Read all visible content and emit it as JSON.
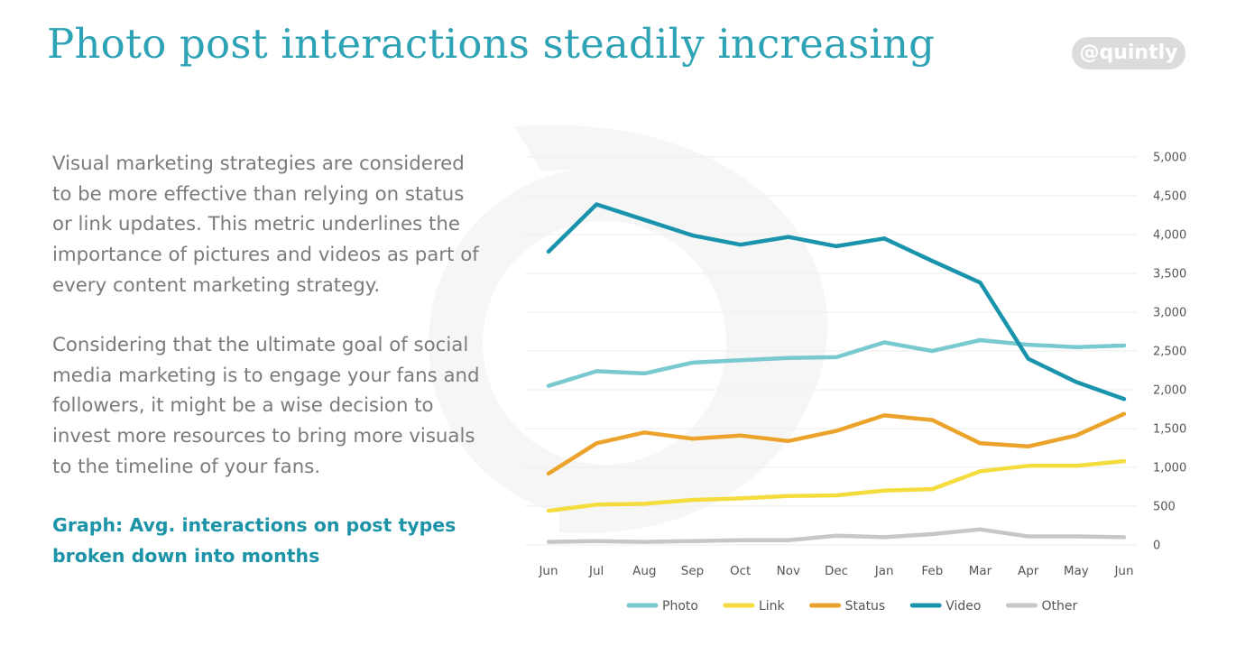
{
  "page": {
    "title": "Photo post interactions steadily increasing",
    "brand": "@quintly",
    "paragraph1": "Visual marketing strategies are considered to be more effective than relying on status or link updates. This metric underlines the importance of pictures and videos as part of every content marketing strategy.",
    "paragraph2": "Considering that the ultimate goal of social media marketing is to engage your fans and followers, it might be a wise decision to invest more resources to bring more visuals to the timeline of your fans.",
    "caption": "Graph: Avg. interactions on post types broken down into months"
  },
  "colors": {
    "title": "#2ea3b6",
    "body_text": "#7b7b7b",
    "caption": "#1d93a8",
    "brand_bg": "#dcdcdc",
    "gridline": "#eeeeee",
    "watermark": "#f5f6f5"
  },
  "chart_data": {
    "type": "line",
    "categories": [
      "Jun",
      "Jul",
      "Aug",
      "Sep",
      "Oct",
      "Nov",
      "Dec",
      "Jan",
      "Feb",
      "Mar",
      "Apr",
      "May",
      "Jun"
    ],
    "ylim": [
      0,
      5000
    ],
    "yticks": [
      0,
      500,
      1000,
      1500,
      2000,
      2500,
      3000,
      3500,
      4000,
      4500,
      5000
    ],
    "ytick_labels": [
      "0",
      "500",
      "1,000",
      "1,500",
      "2,000",
      "2,500",
      "3,000",
      "3,500",
      "4,000",
      "4,500",
      "5,000"
    ],
    "y_axis_side": "right",
    "grid": true,
    "legend_position": "bottom",
    "series": [
      {
        "name": "Photo",
        "color": "#79c9d0",
        "values": [
          2050,
          2240,
          2210,
          2350,
          2380,
          2410,
          2420,
          2610,
          2500,
          2640,
          2580,
          2550,
          2570
        ]
      },
      {
        "name": "Link",
        "color": "#f4dc3e",
        "values": [
          440,
          520,
          530,
          580,
          600,
          630,
          640,
          700,
          720,
          950,
          1020,
          1020,
          1080
        ]
      },
      {
        "name": "Status",
        "color": "#eca32b",
        "values": [
          920,
          1310,
          1450,
          1370,
          1410,
          1340,
          1470,
          1670,
          1610,
          1310,
          1270,
          1410,
          1690
        ]
      },
      {
        "name": "Video",
        "color": "#1a94ad",
        "values": [
          3780,
          4390,
          4190,
          3990,
          3870,
          3970,
          3850,
          3950,
          3660,
          3380,
          2400,
          2100,
          1880
        ]
      },
      {
        "name": "Other",
        "color": "#c5c7c8",
        "values": [
          40,
          50,
          40,
          50,
          60,
          60,
          120,
          100,
          140,
          200,
          110,
          110,
          100
        ]
      }
    ]
  }
}
